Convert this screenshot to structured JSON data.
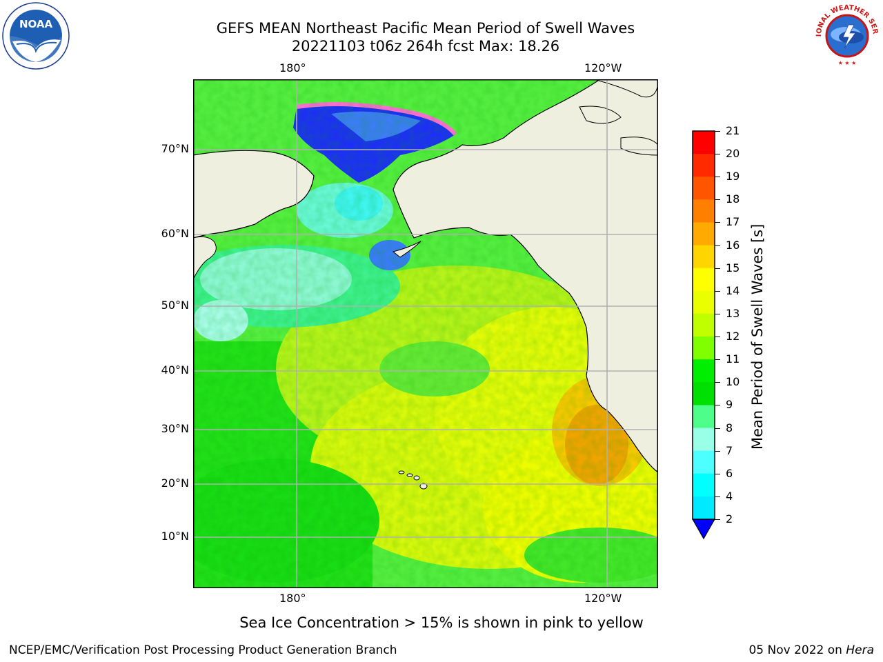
{
  "header": {
    "title_line1": "GEFS MEAN Northeast Pacific Mean Period of Swell Waves",
    "title_line2": "20221103 t06z 264h fcst   Max: 18.26"
  },
  "map": {
    "lon_ticks_top": [
      "180°",
      "120°W"
    ],
    "lon_ticks_bottom": [
      "180°",
      "120°W"
    ],
    "lat_ticks": [
      "70°N",
      "60°N",
      "50°N",
      "40°N",
      "30°N",
      "20°N",
      "10°N"
    ],
    "land_color": "#efefdf",
    "grid_color": "#b0b0b0"
  },
  "colorbar": {
    "label": "Mean Period of Swell Waves [s]",
    "ticks": [
      "21",
      "20",
      "19",
      "18",
      "17",
      "16",
      "15",
      "14",
      "13",
      "12",
      "11",
      "10",
      "9",
      "8",
      "7",
      "6",
      "4",
      "2"
    ],
    "colors": [
      "#ff0000",
      "#ff2a00",
      "#ff5500",
      "#ff8000",
      "#ffaa00",
      "#ffd500",
      "#ffff00",
      "#eaff00",
      "#c0ff00",
      "#80ff00",
      "#00ee00",
      "#00e000",
      "#4dff8a",
      "#99ffe6",
      "#4dffff",
      "#00ffff",
      "#00eaff",
      "#0080ff",
      "#0000ff"
    ]
  },
  "note": "Sea Ice Concentration > 15% is shown in pink to yellow",
  "footer": {
    "left": "NCEP/EMC/Verification Post Processing Product Generation Branch",
    "right_prefix": "05 Nov 2022 on ",
    "right_machine": "Hera"
  },
  "logos": {
    "left": "noaa-logo",
    "left_text": "NOAA",
    "right": "nws-logo",
    "right_text": "NATIONAL WEATHER SERVICE"
  }
}
